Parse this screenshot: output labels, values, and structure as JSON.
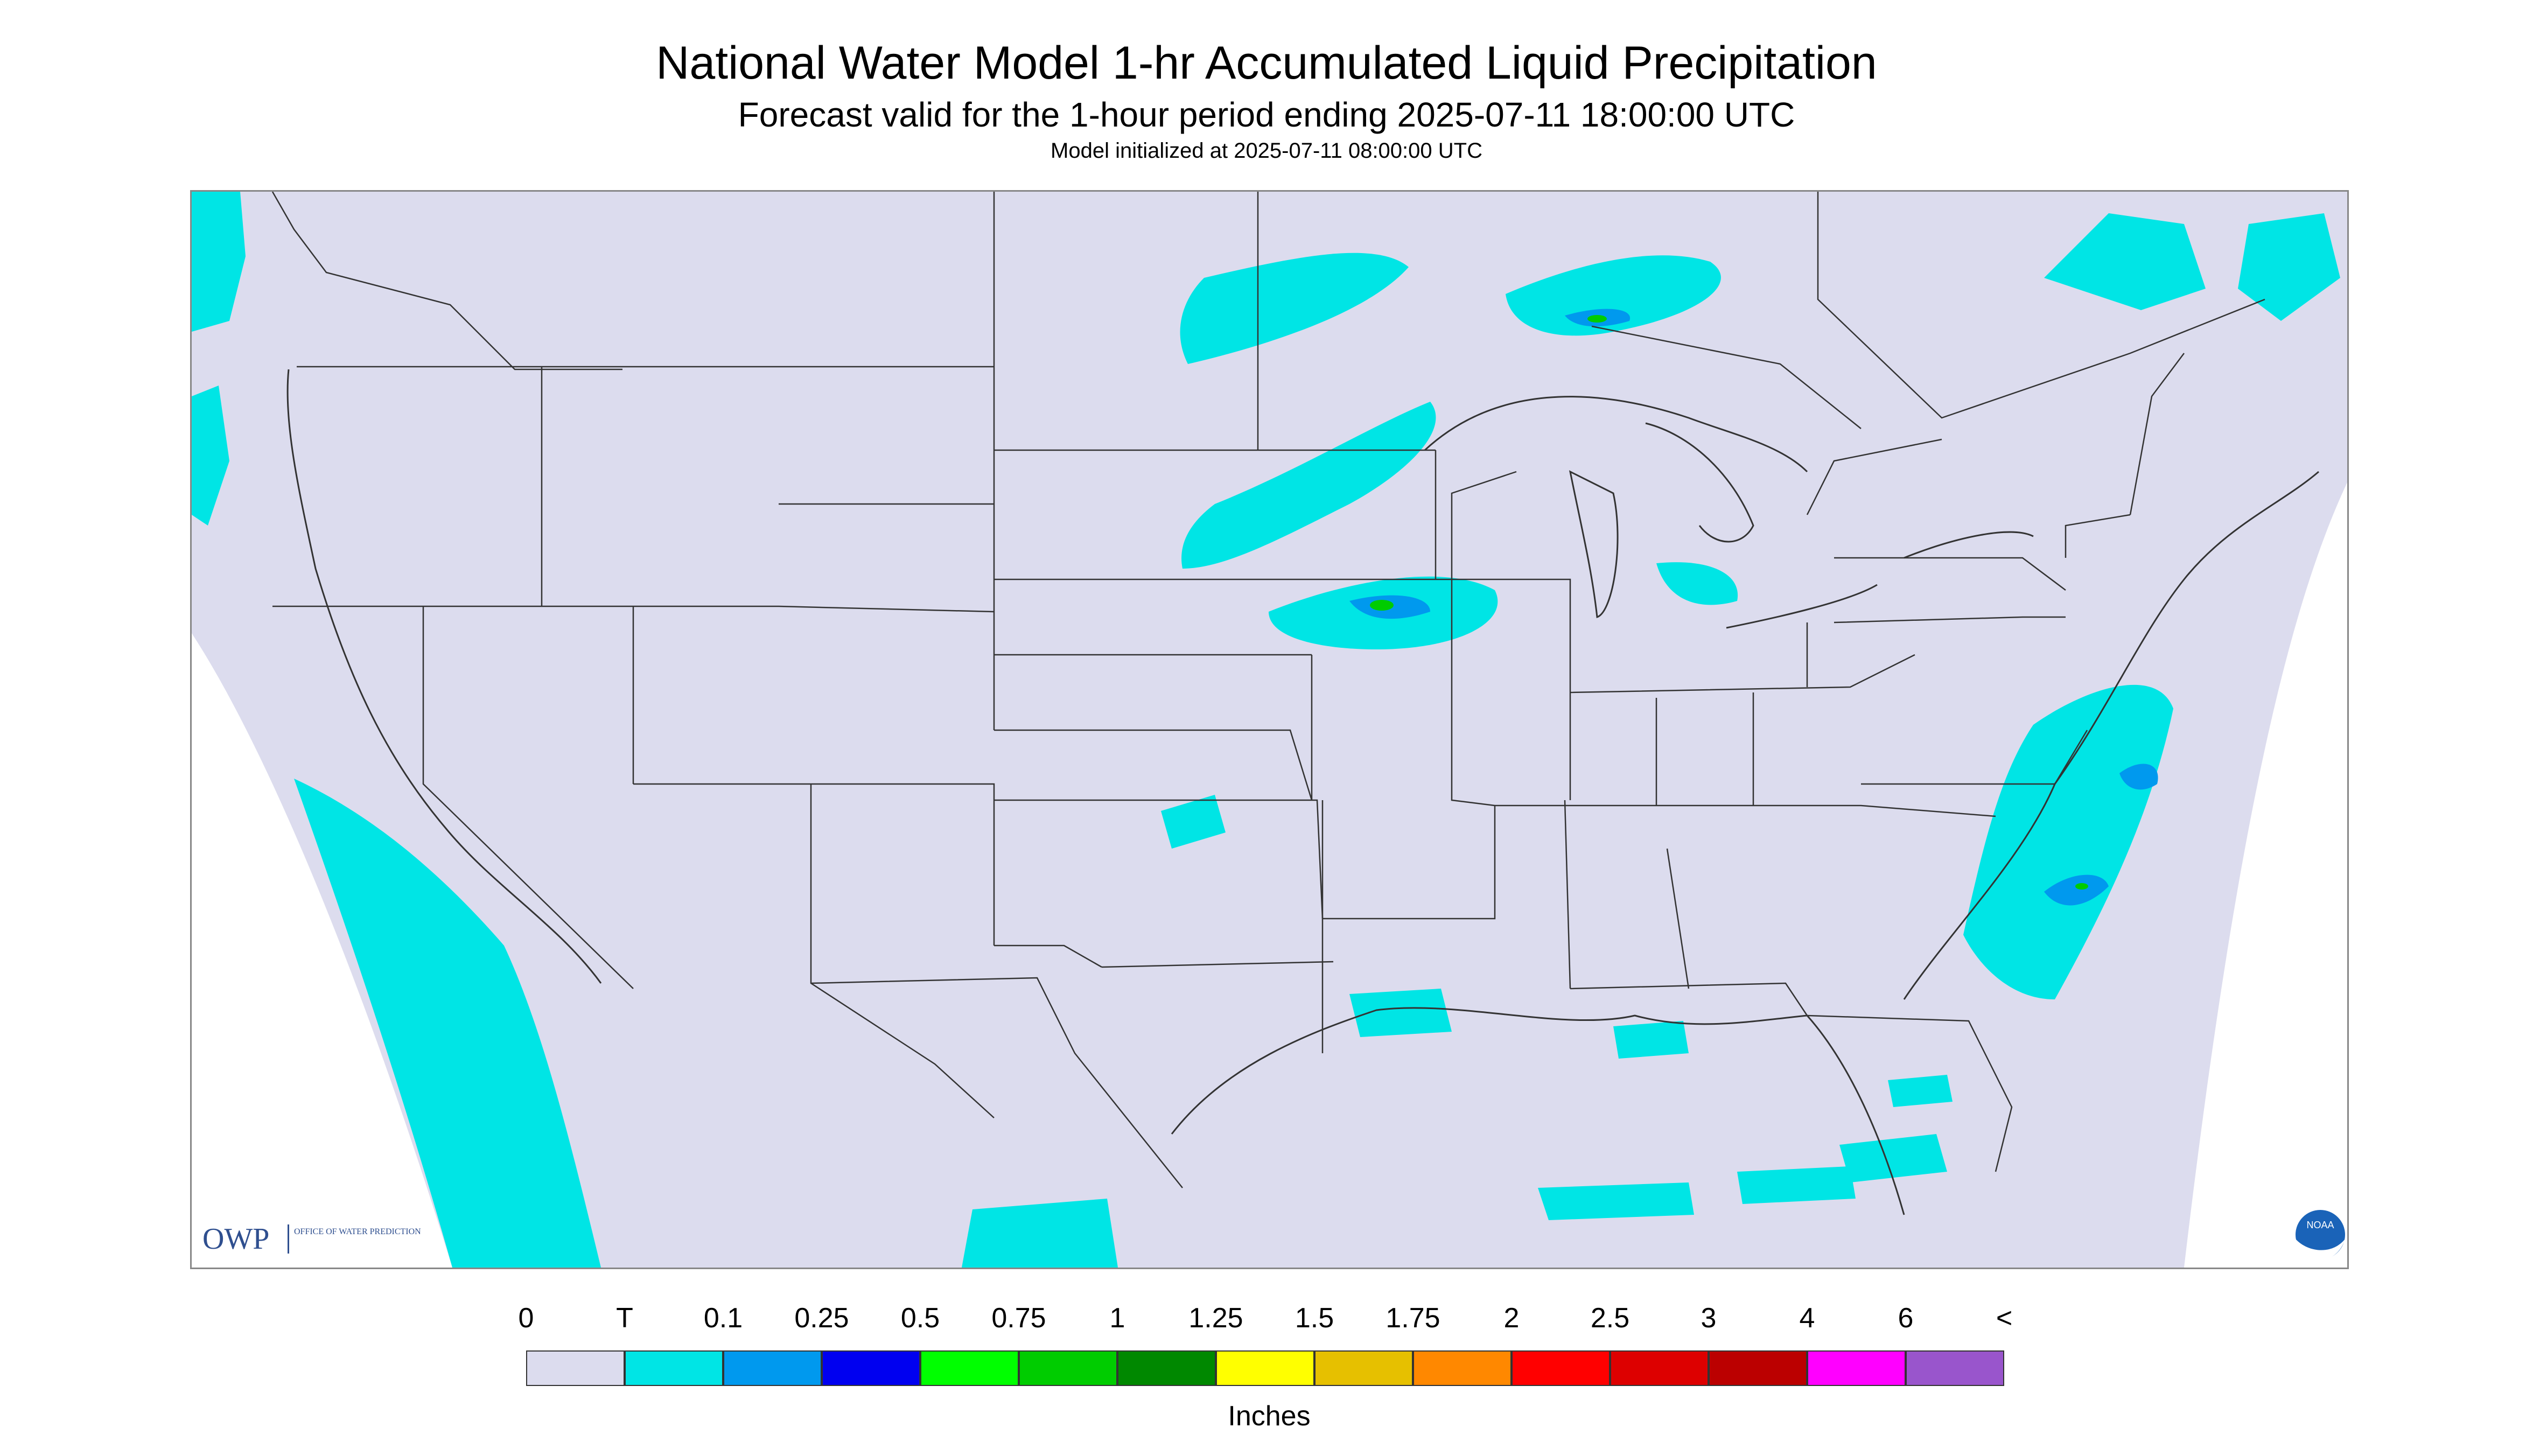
{
  "title": "National Water Model 1-hr Accumulated Liquid Precipitation",
  "subtitle": "Forecast valid for the 1-hour period ending 2025-07-11 18:00:00 UTC",
  "init_line": "Model initialized at 2025-07-11 08:00:00 UTC",
  "legend": {
    "labels": [
      "0",
      "T",
      "0.1",
      "0.25",
      "0.5",
      "0.75",
      "1",
      "1.25",
      "1.5",
      "1.75",
      "2",
      "2.5",
      "3",
      "4",
      "6",
      "<"
    ],
    "colors": [
      "#dcdcee",
      "#00e5e5",
      "#0099ee",
      "#0000f0",
      "#00ff00",
      "#00cc00",
      "#008800",
      "#ffff00",
      "#e6c000",
      "#ff8800",
      "#ff0000",
      "#dd0000",
      "#bb0000",
      "#ff00ff",
      "#9955cc"
    ],
    "units": "Inches"
  },
  "colors": {
    "no_precip": "#dcdcee",
    "trace": "#00e5e5",
    "border": "#333333",
    "outside_domain": "#ffffff"
  },
  "logos": {
    "owp_mark": "OWP",
    "owp_text": "OFFICE OF WATER PREDICTION",
    "noaa": "NOAA"
  }
}
